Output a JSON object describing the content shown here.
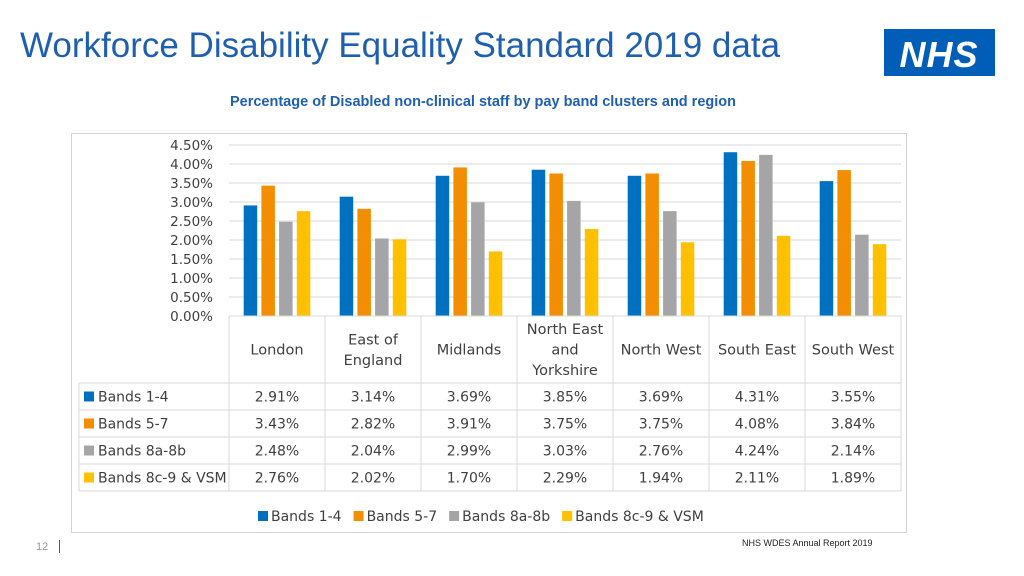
{
  "header": {
    "title": "Workforce Disability Equality Standard 2019 data",
    "logo_text": "NHS",
    "logo_color": "#005eb8"
  },
  "chart_data": {
    "type": "bar",
    "title": "Percentage of Disabled non-clinical staff by pay band clusters and region",
    "categories": [
      "London",
      "East of England",
      "Midlands",
      "North East and Yorkshire",
      "North West",
      "South East",
      "South West"
    ],
    "category_lines": [
      [
        "London"
      ],
      [
        "East of",
        "England"
      ],
      [
        "Midlands"
      ],
      [
        "North East",
        "and",
        "Yorkshire"
      ],
      [
        "North West"
      ],
      [
        "South East"
      ],
      [
        "South West"
      ]
    ],
    "series": [
      {
        "name": "Bands 1-4",
        "color": "#0070c0",
        "values": [
          2.91,
          3.14,
          3.69,
          3.85,
          3.69,
          4.31,
          3.55
        ],
        "labels": [
          "2.91%",
          "3.14%",
          "3.69%",
          "3.85%",
          "3.69%",
          "4.31%",
          "3.55%"
        ]
      },
      {
        "name": "Bands 5-7",
        "color": "#f28e00",
        "values": [
          3.43,
          2.82,
          3.91,
          3.75,
          3.75,
          4.08,
          3.84
        ],
        "labels": [
          "3.43%",
          "2.82%",
          "3.91%",
          "3.75%",
          "3.75%",
          "4.08%",
          "3.84%"
        ]
      },
      {
        "name": "Bands 8a-8b",
        "color": "#a5a5a5",
        "values": [
          2.48,
          2.04,
          2.99,
          3.03,
          2.76,
          4.24,
          2.14
        ],
        "labels": [
          "2.48%",
          "2.04%",
          "2.99%",
          "3.03%",
          "2.76%",
          "4.24%",
          "2.14%"
        ]
      },
      {
        "name": "Bands 8c-9 & VSM",
        "color": "#ffc000",
        "values": [
          2.76,
          2.02,
          1.7,
          2.29,
          1.94,
          2.11,
          1.89
        ],
        "labels": [
          "2.76%",
          "2.02%",
          "1.70%",
          "2.29%",
          "1.94%",
          "2.11%",
          "1.89%"
        ]
      }
    ],
    "ylim": [
      0,
      4.5
    ],
    "yticks": [
      "0.00%",
      "0.50%",
      "1.00%",
      "1.50%",
      "2.00%",
      "2.50%",
      "3.00%",
      "3.50%",
      "4.00%",
      "4.50%"
    ],
    "grid": true,
    "legend_position": "bottom",
    "data_table": true
  },
  "footer": {
    "page_number": "12",
    "source": "NHS WDES Annual Report 2019"
  }
}
